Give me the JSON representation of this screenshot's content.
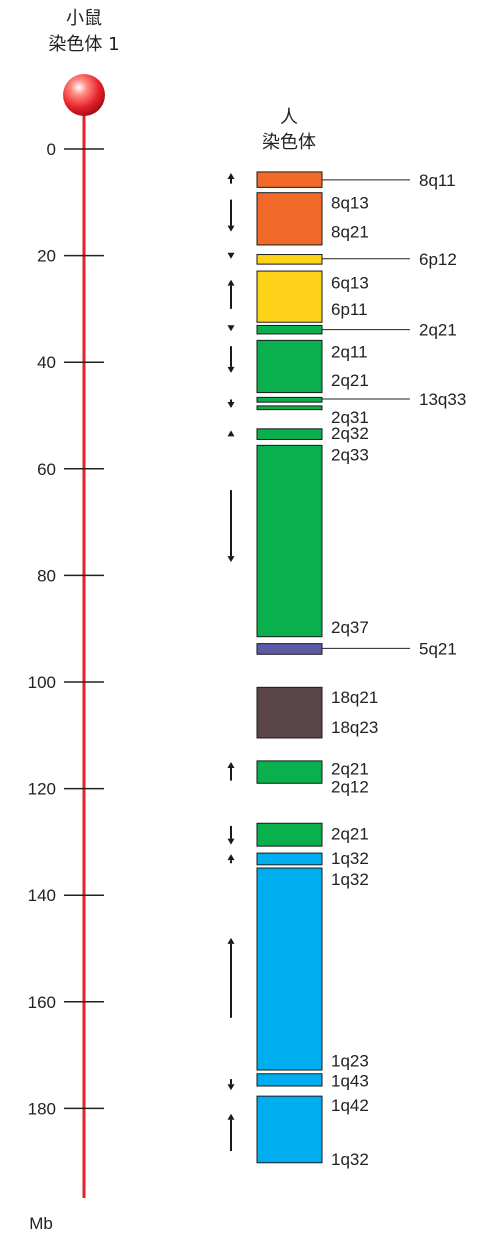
{
  "mouse_title_line1": "小鼠",
  "mouse_title_line2": "染色体 1",
  "human_title_line1": "人",
  "human_title_line2": "染色体",
  "axis_unit": "Mb",
  "colors": {
    "mouse_chromosome": "#e8202a",
    "orange": "#f26a2a",
    "yellow": "#ffd21a",
    "green": "#0aaf4e",
    "purple": "#5b5ba8",
    "brown": "#5a4648",
    "blue": "#00aeef"
  },
  "ticks": [
    0,
    20,
    40,
    60,
    80,
    100,
    120,
    140,
    160,
    180
  ],
  "blocks": [
    {
      "from": 4.3,
      "to": 7.2,
      "color": "orange"
    },
    {
      "from": 8.2,
      "to": 18.0,
      "color": "orange"
    },
    {
      "from": 19.8,
      "to": 21.6,
      "color": "yellow"
    },
    {
      "from": 22.9,
      "to": 32.5,
      "color": "yellow"
    },
    {
      "from": 33.1,
      "to": 34.7,
      "color": "green"
    },
    {
      "from": 35.9,
      "to": 45.7,
      "color": "green"
    },
    {
      "from": 46.6,
      "to": 47.5,
      "color": "green"
    },
    {
      "from": 48.2,
      "to": 48.9,
      "color": "green"
    },
    {
      "from": 52.5,
      "to": 54.5,
      "color": "green"
    },
    {
      "from": 55.6,
      "to": 91.5,
      "color": "green"
    },
    {
      "from": 92.8,
      "to": 94.8,
      "color": "purple"
    },
    {
      "from": 101.0,
      "to": 110.5,
      "color": "brown"
    },
    {
      "from": 114.8,
      "to": 119.0,
      "color": "green"
    },
    {
      "from": 126.5,
      "to": 130.8,
      "color": "green"
    },
    {
      "from": 132.1,
      "to": 134.3,
      "color": "blue"
    },
    {
      "from": 134.9,
      "to": 172.8,
      "color": "blue"
    },
    {
      "from": 173.5,
      "to": 175.8,
      "color": "blue"
    },
    {
      "from": 177.7,
      "to": 190.2,
      "color": "blue"
    }
  ],
  "labels": [
    {
      "text": "8q11",
      "at": 5.8,
      "leader": true
    },
    {
      "text": "8q13",
      "at": 10.0,
      "leader": false
    },
    {
      "text": "8q21",
      "at": 15.5,
      "leader": false
    },
    {
      "text": "6p12",
      "at": 20.6,
      "leader": true
    },
    {
      "text": "6q13",
      "at": 25.0,
      "leader": false
    },
    {
      "text": "6p11",
      "at": 30.0,
      "leader": false
    },
    {
      "text": "2q21",
      "at": 33.9,
      "leader": true
    },
    {
      "text": "2q11",
      "at": 38.0,
      "leader": false
    },
    {
      "text": "2q21",
      "at": 43.3,
      "leader": false
    },
    {
      "text": "13q33",
      "at": 46.9,
      "leader": true
    },
    {
      "text": "2q31",
      "at": 50.3,
      "leader": false
    },
    {
      "text": "2q32",
      "at": 53.3,
      "leader": false
    },
    {
      "text": "2q33",
      "at": 57.3,
      "leader": false
    },
    {
      "text": "2q37",
      "at": 89.7,
      "leader": false
    },
    {
      "text": "5q21",
      "at": 93.7,
      "leader": true
    },
    {
      "text": "18q21",
      "at": 102.8,
      "leader": false
    },
    {
      "text": "18q23",
      "at": 108.4,
      "leader": false
    },
    {
      "text": "2q21",
      "at": 116.2,
      "leader": false
    },
    {
      "text": "2q12",
      "at": 119.6,
      "leader": false
    },
    {
      "text": "2q21",
      "at": 128.4,
      "leader": false
    },
    {
      "text": "1q32",
      "at": 133.0,
      "leader": false
    },
    {
      "text": "1q32",
      "at": 137.0,
      "leader": false
    },
    {
      "text": "1q23",
      "at": 171.0,
      "leader": false
    },
    {
      "text": "1q43",
      "at": 174.8,
      "leader": false
    },
    {
      "text": "1q42",
      "at": 179.4,
      "leader": false
    },
    {
      "text": "1q32",
      "at": 189.5,
      "leader": false
    }
  ],
  "arrows": [
    {
      "from": 6.5,
      "to": 4.5,
      "direction": "up"
    },
    {
      "from": 9.5,
      "to": 15.5,
      "direction": "down"
    },
    {
      "from": 19.3,
      "to": 20.6,
      "direction": "down"
    },
    {
      "from": 30.0,
      "to": 24.5,
      "direction": "up"
    },
    {
      "from": 32.8,
      "to": 34.2,
      "direction": "down"
    },
    {
      "from": 37.0,
      "to": 42.0,
      "direction": "down"
    },
    {
      "from": 47.0,
      "to": 48.6,
      "direction": "down"
    },
    {
      "from": 54.3,
      "to": 52.8,
      "direction": "up"
    },
    {
      "from": 64.0,
      "to": 77.5,
      "direction": "down"
    },
    {
      "from": 118.5,
      "to": 115.0,
      "direction": "up"
    },
    {
      "from": 127.0,
      "to": 130.5,
      "direction": "down"
    },
    {
      "from": 134.0,
      "to": 132.3,
      "direction": "up"
    },
    {
      "from": 163.0,
      "to": 148.0,
      "direction": "up"
    },
    {
      "from": 174.5,
      "to": 176.6,
      "direction": "down"
    },
    {
      "from": 188.0,
      "to": 181.0,
      "direction": "up"
    }
  ]
}
